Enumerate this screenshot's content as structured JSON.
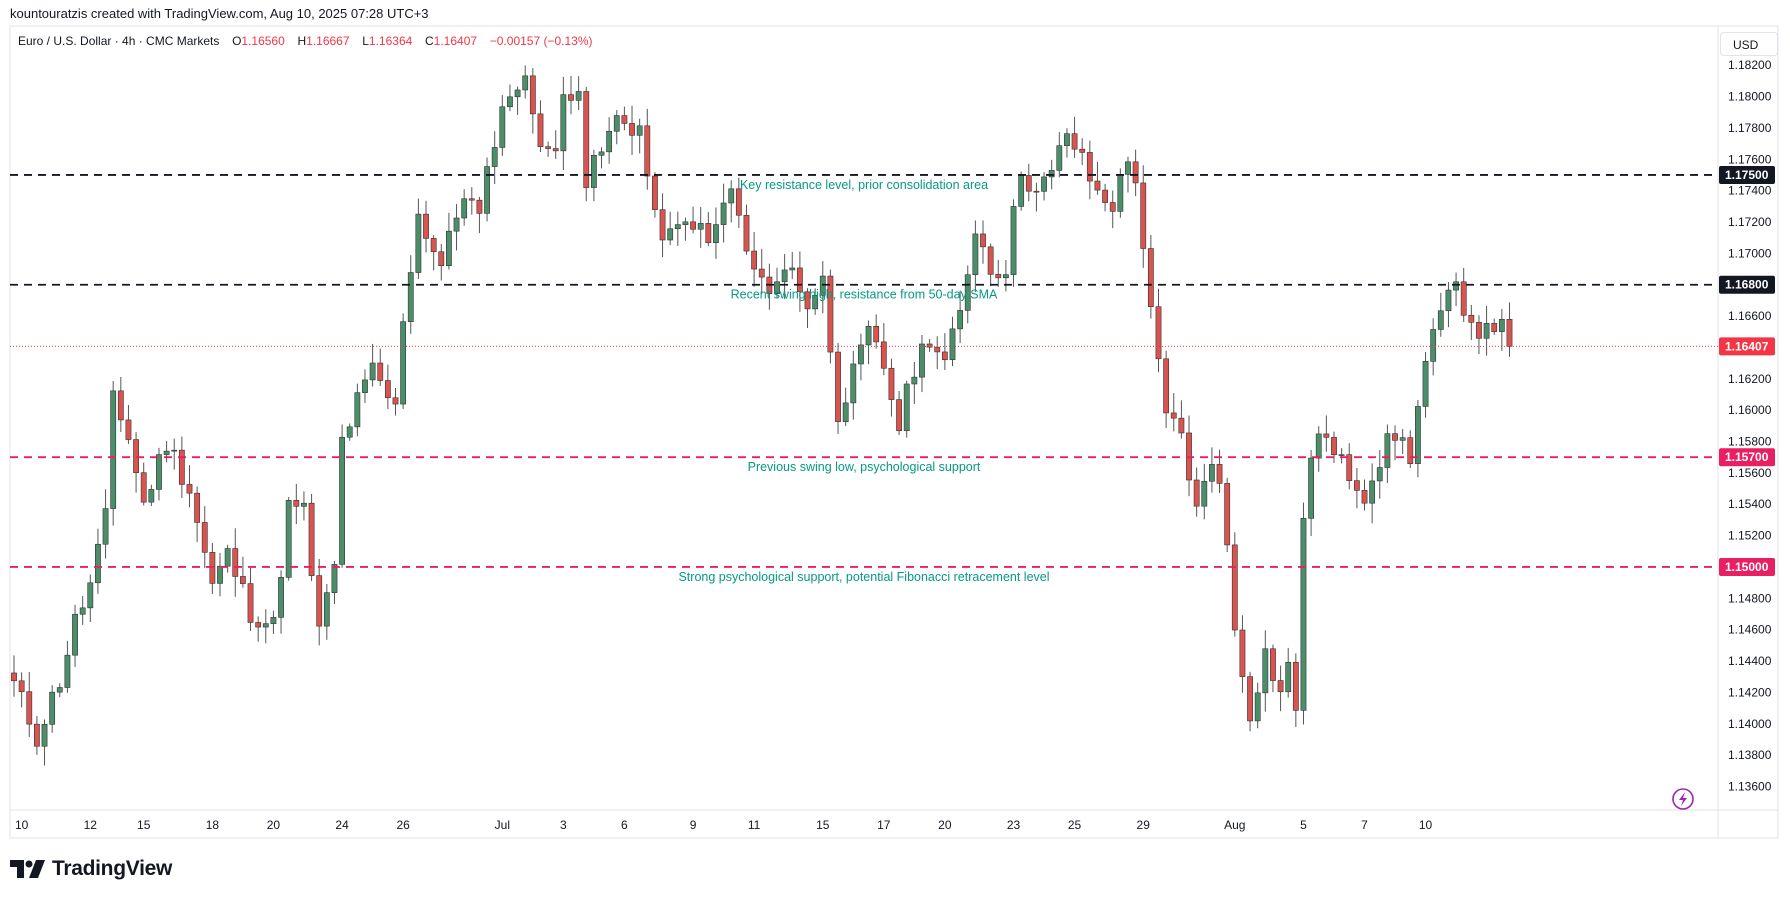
{
  "caption": "kountouratzis created with TradingView.com, Aug 10, 2025 07:28 UTC+3",
  "symbol": {
    "name": "Euro / U.S. Dollar · 4h · CMC Markets",
    "open_label": "O",
    "open": "1.16560",
    "high_label": "H",
    "high": "1.16667",
    "low_label": "L",
    "low": "1.16364",
    "close_label": "C",
    "close": "1.16407",
    "change": "−0.00157 (−0.13%)"
  },
  "currency": "USD",
  "brand": "TradingView",
  "colors": {
    "up": "#4a8f6a",
    "down": "#d9534f",
    "resistance": "#131722",
    "support": "#e91e63",
    "last_price": "#f23645",
    "annotation": "#089981"
  },
  "chart_data": {
    "type": "candlestick",
    "title": "",
    "ylim": [
      1.1345,
      1.1845
    ],
    "y_ticks": [
      "1.13600",
      "1.13800",
      "1.14000",
      "1.14200",
      "1.14400",
      "1.14600",
      "1.14800",
      "1.15000",
      "1.15200",
      "1.15400",
      "1.15600",
      "1.15800",
      "1.16000",
      "1.16200",
      "1.16400",
      "1.16600",
      "1.16800",
      "1.17000",
      "1.17200",
      "1.17400",
      "1.17600",
      "1.17800",
      "1.18000",
      "1.18200"
    ],
    "x_ticks": [
      {
        "label": "10",
        "bar": 1
      },
      {
        "label": "12",
        "bar": 10
      },
      {
        "label": "15",
        "bar": 17
      },
      {
        "label": "18",
        "bar": 26
      },
      {
        "label": "20",
        "bar": 34
      },
      {
        "label": "24",
        "bar": 43
      },
      {
        "label": "26",
        "bar": 51
      },
      {
        "label": "Jul",
        "bar": 64
      },
      {
        "label": "3",
        "bar": 72
      },
      {
        "label": "6",
        "bar": 80
      },
      {
        "label": "9",
        "bar": 89
      },
      {
        "label": "11",
        "bar": 97
      },
      {
        "label": "15",
        "bar": 106
      },
      {
        "label": "17",
        "bar": 114
      },
      {
        "label": "20",
        "bar": 122
      },
      {
        "label": "23",
        "bar": 131
      },
      {
        "label": "25",
        "bar": 139
      },
      {
        "label": "29",
        "bar": 148
      },
      {
        "label": "Aug",
        "bar": 160
      },
      {
        "label": "5",
        "bar": 169
      },
      {
        "label": "7",
        "bar": 177
      },
      {
        "label": "10",
        "bar": 185
      }
    ],
    "levels": [
      {
        "price": 1.175,
        "label": "1.17500",
        "kind": "resistance",
        "text": "Key resistance level, prior consolidation area"
      },
      {
        "price": 1.168,
        "label": "1.16800",
        "kind": "resistance",
        "text": "Recent swing high, resistance from 50-day SMA"
      },
      {
        "price": 1.157,
        "label": "1.15700",
        "kind": "support",
        "text": "Previous swing low, psychological support"
      },
      {
        "price": 1.15,
        "label": "1.15000",
        "kind": "support",
        "text": "Strong psychological support, potential Fibonacci retracement level"
      }
    ],
    "last_price": {
      "price": 1.16407,
      "label": "1.16407"
    },
    "waypoints": [
      [
        0,
        1.1425
      ],
      [
        3,
        1.1392
      ],
      [
        6,
        1.1428
      ],
      [
        8,
        1.1465
      ],
      [
        10,
        1.1488
      ],
      [
        12,
        1.153
      ],
      [
        13,
        1.1612
      ],
      [
        15,
        1.1582
      ],
      [
        17,
        1.154
      ],
      [
        20,
        1.158
      ],
      [
        23,
        1.155
      ],
      [
        26,
        1.1488
      ],
      [
        28,
        1.1508
      ],
      [
        31,
        1.1472
      ],
      [
        34,
        1.1462
      ],
      [
        36,
        1.1538
      ],
      [
        38,
        1.1535
      ],
      [
        40,
        1.1458
      ],
      [
        42,
        1.15
      ],
      [
        43,
        1.158
      ],
      [
        45,
        1.1605
      ],
      [
        47,
        1.1625
      ],
      [
        50,
        1.16
      ],
      [
        51,
        1.166
      ],
      [
        53,
        1.1725
      ],
      [
        56,
        1.1692
      ],
      [
        59,
        1.174
      ],
      [
        61,
        1.1722
      ],
      [
        63,
        1.1775
      ],
      [
        65,
        1.1805
      ],
      [
        67,
        1.1808
      ],
      [
        69,
        1.1775
      ],
      [
        71,
        1.176
      ],
      [
        72,
        1.18
      ],
      [
        74,
        1.181
      ],
      [
        75,
        1.1745
      ],
      [
        77,
        1.1765
      ],
      [
        79,
        1.1785
      ],
      [
        82,
        1.178
      ],
      [
        84,
        1.172
      ],
      [
        86,
        1.171
      ],
      [
        89,
        1.1722
      ],
      [
        91,
        1.1705
      ],
      [
        94,
        1.1742
      ],
      [
        96,
        1.17
      ],
      [
        98,
        1.1678
      ],
      [
        102,
        1.169
      ],
      [
        104,
        1.1668
      ],
      [
        106,
        1.1682
      ],
      [
        108,
        1.16
      ],
      [
        110,
        1.1622
      ],
      [
        112,
        1.1648
      ],
      [
        114,
        1.1628
      ],
      [
        116,
        1.159
      ],
      [
        118,
        1.1628
      ],
      [
        120,
        1.1648
      ],
      [
        122,
        1.163
      ],
      [
        124,
        1.166
      ],
      [
        126,
        1.1718
      ],
      [
        128,
        1.169
      ],
      [
        130,
        1.1692
      ],
      [
        132,
        1.1755
      ],
      [
        134,
        1.1738
      ],
      [
        136,
        1.175
      ],
      [
        138,
        1.1778
      ],
      [
        140,
        1.1758
      ],
      [
        142,
        1.1738
      ],
      [
        144,
        1.1732
      ],
      [
        146,
        1.1758
      ],
      [
        147,
        1.175
      ],
      [
        149,
        1.166
      ],
      [
        151,
        1.1595
      ],
      [
        153,
        1.1585
      ],
      [
        155,
        1.1535
      ],
      [
        157,
        1.1568
      ],
      [
        158,
        1.156
      ],
      [
        160,
        1.146
      ],
      [
        162,
        1.1408
      ],
      [
        164,
        1.1445
      ],
      [
        166,
        1.142
      ],
      [
        167,
        1.1435
      ],
      [
        168,
        1.141
      ],
      [
        169,
        1.1535
      ],
      [
        171,
        1.159
      ],
      [
        173,
        1.157
      ],
      [
        175,
        1.156
      ],
      [
        177,
        1.1548
      ],
      [
        179,
        1.157
      ],
      [
        181,
        1.1585
      ],
      [
        183,
        1.1572
      ],
      [
        185,
        1.163
      ],
      [
        187,
        1.166
      ],
      [
        189,
        1.1678
      ],
      [
        191,
        1.1658
      ],
      [
        193,
        1.1648
      ],
      [
        195,
        1.1662
      ],
      [
        196,
        1.164
      ]
    ]
  }
}
